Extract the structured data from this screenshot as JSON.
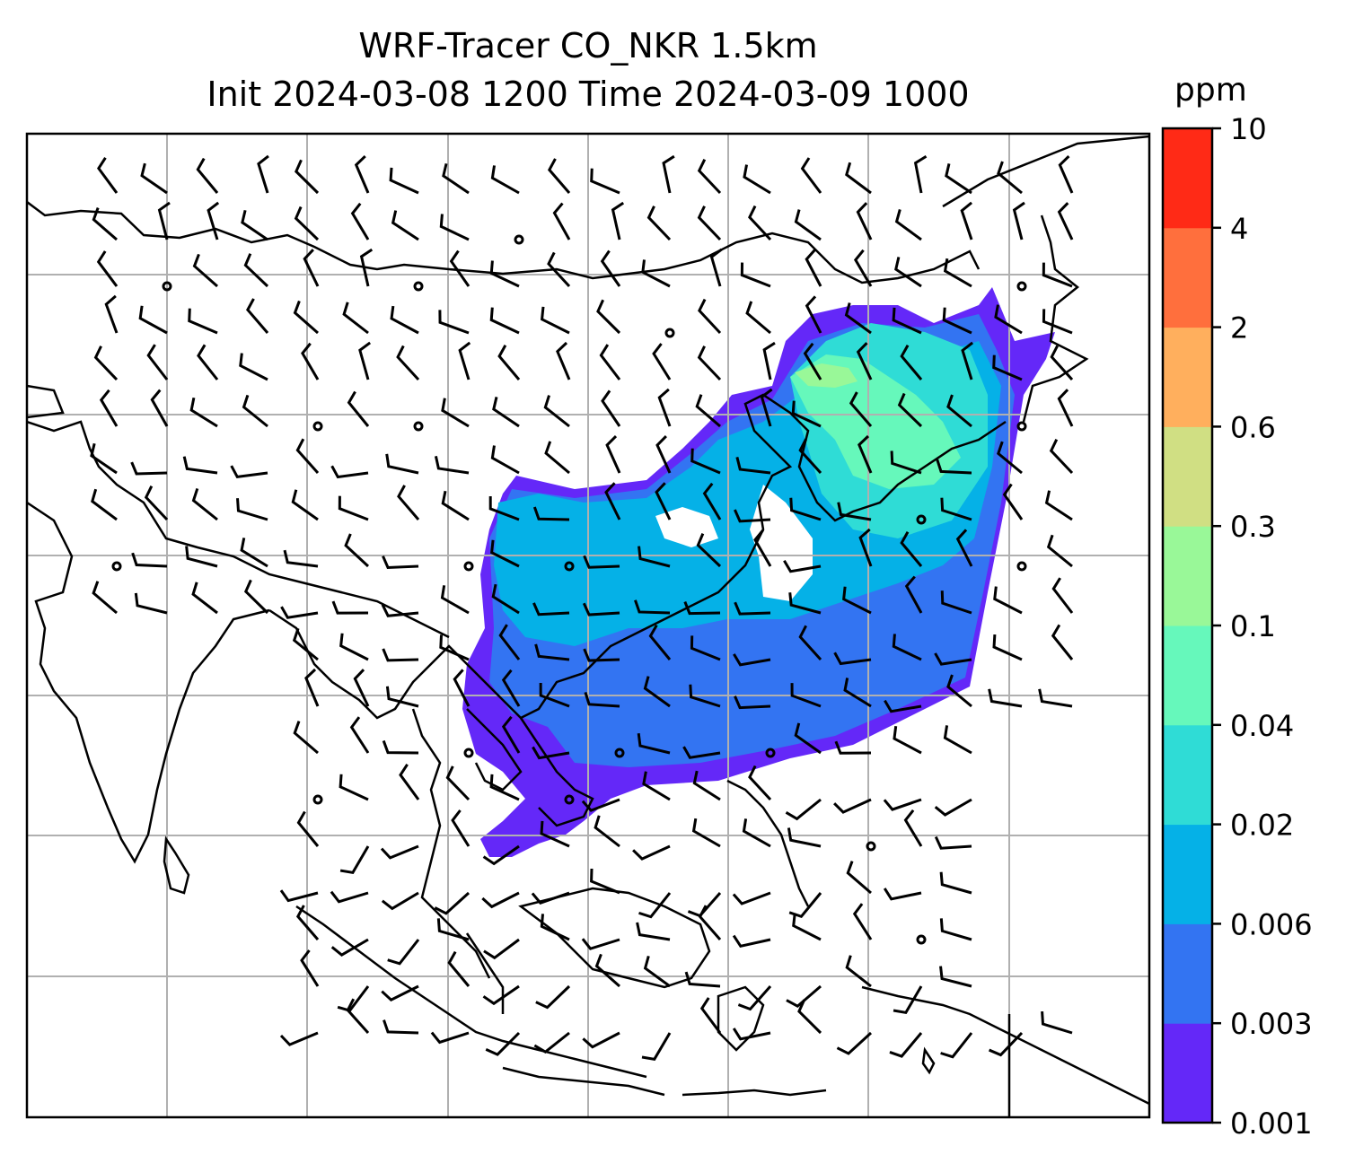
{
  "title_line1": "WRF-Tracer CO_NKR 1.5km",
  "title_line2": "Init 2024-03-08 1200 Time 2024-03-09 1000",
  "colorbar": {
    "label": "ppm",
    "levels": [
      "0.001",
      "0.003",
      "0.006",
      "0.02",
      "0.04",
      "0.1",
      "0.3",
      "0.6",
      "2",
      "4",
      "10"
    ],
    "colors": [
      "#6428f8",
      "#3374f2",
      "#05b1e7",
      "#2fdcd6",
      "#66f8bb",
      "#99f898",
      "#d0df83",
      "#ffaf5d",
      "#ff6f3d",
      "#ff2a16"
    ]
  },
  "map": {
    "gridlines": true,
    "coastline_color": "#000000",
    "grid_color": "#b0b0b0"
  }
}
